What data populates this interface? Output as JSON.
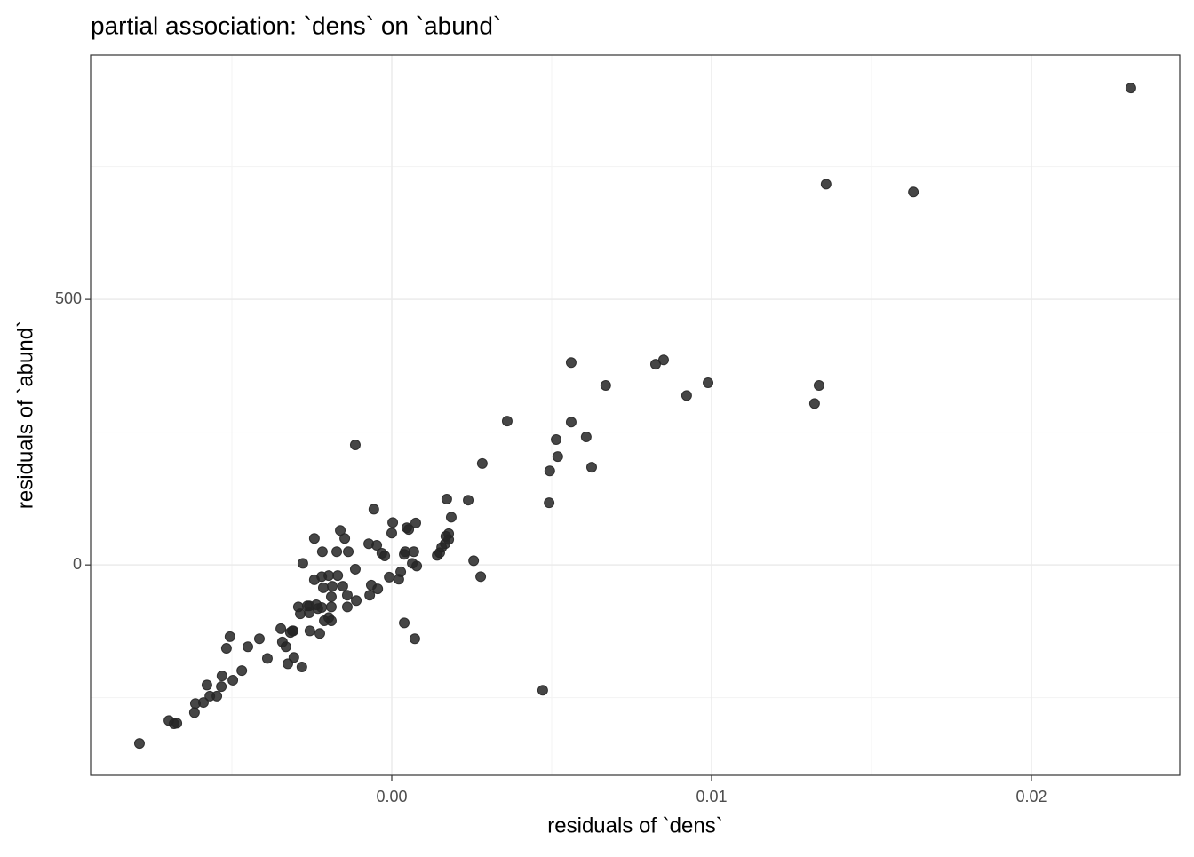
{
  "chart_data": {
    "type": "scatter",
    "title": "partial association: `dens` on `abund`",
    "x_label": "residuals of `dens`",
    "y_label": "residuals of `abund`",
    "color": "#262626",
    "grid": true,
    "xlim": [
      -0.009417,
      0.02464
    ],
    "ylim": [
      -396,
      960
    ],
    "xticks": [
      {
        "value": 0,
        "label": "0.00"
      },
      0.01,
      0.02
    ],
    "yticks": [
      0,
      500
    ],
    "xminor": [
      -0.005,
      0.005,
      0.015
    ],
    "yminor": [
      -250,
      250,
      750
    ],
    "x": [
      0.02311,
      0.01358,
      0.01631,
      0.00561,
      0.00825,
      0.0085,
      0.00669,
      0.00989,
      0.00922,
      0.01336,
      0.01322,
      0.00361,
      0.00561,
      0.00514,
      0.00608,
      0.00519,
      0.00283,
      0.00625,
      0.00494,
      -0.00114,
      0.00492,
      0.00172,
      0.00239,
      -0.00056,
      0.00186,
      3e-05,
      0.00075,
      0.00178,
      0.00178,
      0,
      0.00047,
      -0.00161,
      -0.00242,
      -0.00072,
      -0.00047,
      0.00053,
      -0.00147,
      -0.00172,
      -0.00136,
      -0.00217,
      0.00042,
      -0.00031,
      0.00069,
      0.0015,
      -0.00022,
      0.00039,
      0.00078,
      -0.00278,
      0.00256,
      0.00167,
      0.00169,
      0.00156,
      0.00142,
      0.00064,
      -0.00114,
      -0.00197,
      0.00028,
      0.00278,
      0.00022,
      -0.00169,
      -0.00219,
      -0.00242,
      -0.00153,
      -0.00186,
      -0.00214,
      -0.00189,
      -8e-05,
      -0.00064,
      -0.00044,
      -0.00069,
      -0.00139,
      -0.00111,
      -0.00139,
      -0.00189,
      -0.00292,
      -0.00231,
      -0.00258,
      -0.00258,
      -0.00219,
      -0.00264,
      -0.00286,
      -0.00197,
      -0.00189,
      -0.00211,
      0.00039,
      0.00072,
      -0.00347,
      -0.00317,
      -0.00311,
      -0.00256,
      -0.00225,
      -0.00342,
      -0.00331,
      -0.00414,
      -0.00506,
      -0.0045,
      -0.00517,
      -0.00469,
      -0.00389,
      -0.00325,
      -0.00281,
      -0.00306,
      -0.00531,
      -0.00497,
      -0.00578,
      -0.00533,
      -0.00547,
      -0.00569,
      -0.00589,
      -0.00614,
      -0.00617,
      -0.00697,
      -0.00681,
      -0.00672,
      -0.00789,
      0.00472,
      -0.00308,
      -0.00236
    ],
    "y": [
      898,
      717,
      702,
      381,
      378,
      386,
      338,
      343,
      319,
      338,
      304,
      271,
      269,
      236,
      241,
      204,
      191,
      184,
      177,
      226,
      117,
      124,
      122,
      105,
      90,
      80,
      79,
      59,
      48,
      60,
      70,
      65,
      50,
      40,
      37,
      67,
      50,
      25,
      25,
      25,
      25,
      22,
      25,
      23,
      17,
      20,
      -2,
      3,
      8,
      40,
      54,
      33,
      18,
      3,
      -8,
      -20,
      -13,
      -22,
      -27,
      -20,
      -22,
      -28,
      -40,
      -40,
      -43,
      -60,
      -23,
      -38,
      -45,
      -57,
      -57,
      -67,
      -79,
      -79,
      -79,
      -82,
      -77,
      -90,
      -80,
      -77,
      -92,
      -99,
      -105,
      -105,
      -109,
      -139,
      -120,
      -127,
      -124,
      -124,
      -129,
      -145,
      -154,
      -139,
      -135,
      -154,
      -157,
      -199,
      -176,
      -186,
      -192,
      -174,
      -209,
      -217,
      -226,
      -229,
      -247,
      -247,
      -259,
      -261,
      -278,
      -293,
      -299,
      -298,
      -336,
      -236,
      -124,
      -75
    ]
  }
}
